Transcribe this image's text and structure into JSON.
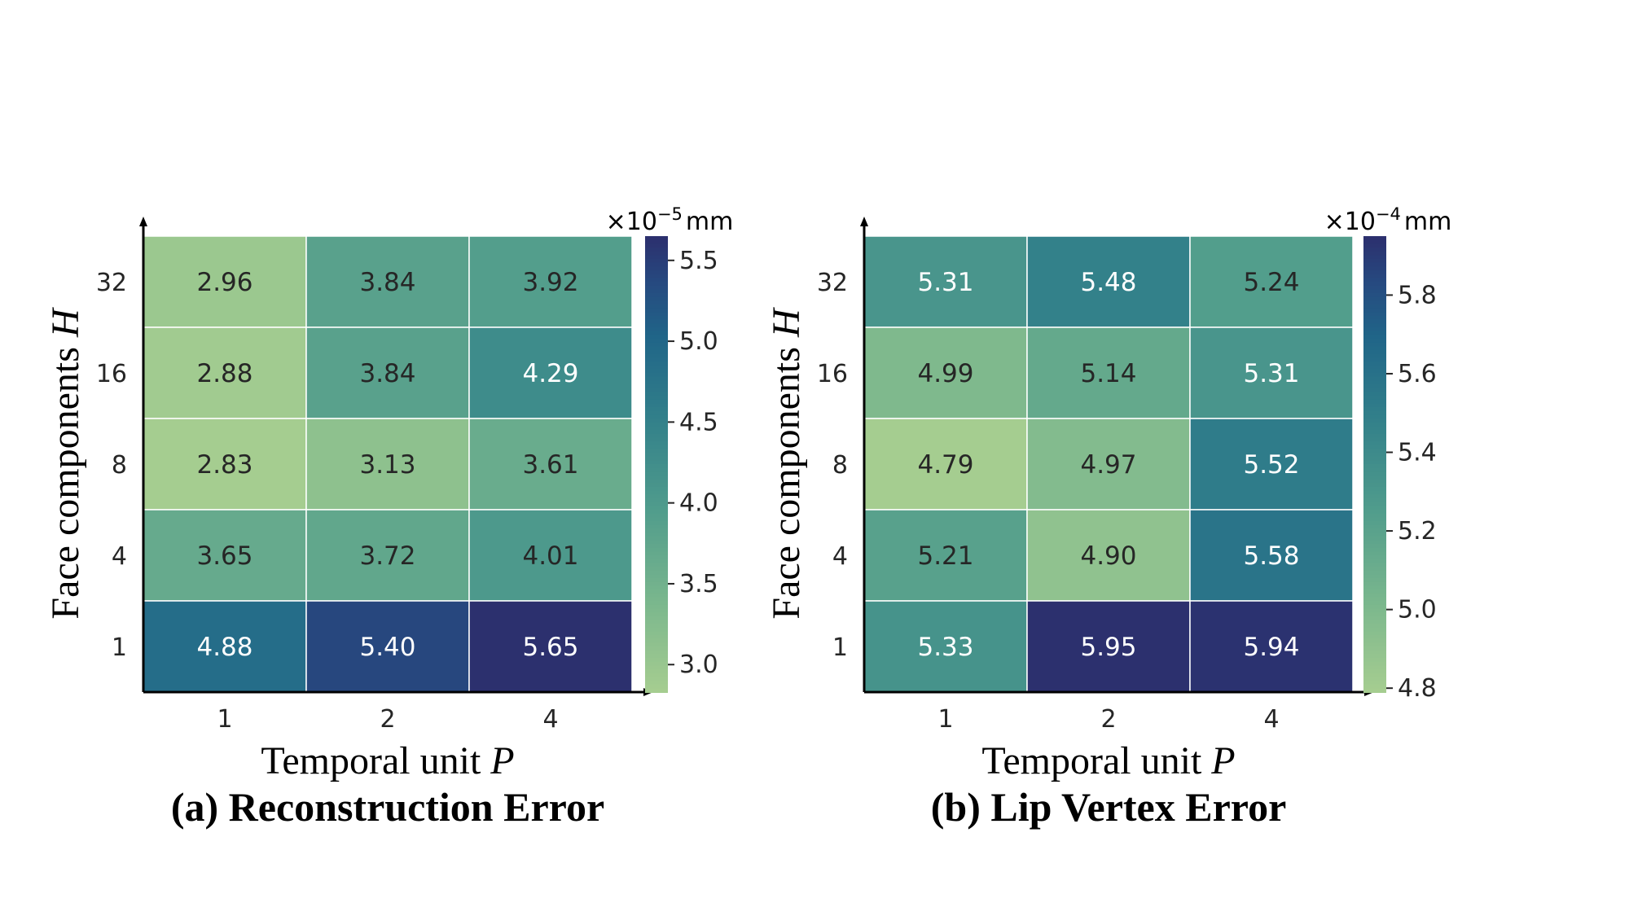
{
  "figure": {
    "panels": [
      {
        "caption": "(a) Reconstruction Error",
        "colorbar_unit_prefix": "×10",
        "colorbar_unit_exponent": "−5",
        "colorbar_unit_suffix": "mm"
      },
      {
        "caption": "(b) Lip Vertex Error",
        "colorbar_unit_prefix": "×10",
        "colorbar_unit_exponent": "−4",
        "colorbar_unit_suffix": "mm"
      }
    ]
  },
  "chart_data": [
    {
      "type": "heatmap",
      "title": "(a) Reconstruction Error",
      "xlabel": "Temporal unit P",
      "ylabel": "Face components H",
      "x_categories": [
        "1",
        "2",
        "4"
      ],
      "y_categories": [
        "32",
        "16",
        "8",
        "4",
        "1"
      ],
      "values": [
        [
          2.96,
          3.84,
          3.92
        ],
        [
          2.88,
          3.84,
          4.29
        ],
        [
          2.83,
          3.13,
          3.61
        ],
        [
          3.65,
          3.72,
          4.01
        ],
        [
          4.88,
          5.4,
          5.65
        ]
      ],
      "colorbar": {
        "range": [
          2.83,
          5.65
        ],
        "ticks": [
          3.0,
          3.5,
          4.0,
          4.5,
          5.0,
          5.5
        ],
        "tick_labels": [
          "3.0",
          "3.5",
          "4.0",
          "4.5",
          "5.0",
          "5.5"
        ],
        "unit": "×10^-5 mm"
      },
      "colormap": "crest"
    },
    {
      "type": "heatmap",
      "title": "(b) Lip Vertex Error",
      "xlabel": "Temporal unit P",
      "ylabel": "Face components H",
      "x_categories": [
        "1",
        "2",
        "4"
      ],
      "y_categories": [
        "32",
        "16",
        "8",
        "4",
        "1"
      ],
      "values": [
        [
          5.31,
          5.48,
          5.24
        ],
        [
          4.99,
          5.14,
          5.31
        ],
        [
          4.79,
          4.97,
          5.52
        ],
        [
          5.21,
          4.9,
          5.58
        ],
        [
          5.33,
          5.95,
          5.94
        ]
      ],
      "colorbar": {
        "range": [
          4.79,
          5.95
        ],
        "ticks": [
          4.8,
          5.0,
          5.2,
          5.4,
          5.6,
          5.8
        ],
        "tick_labels": [
          "4.8",
          "5.0",
          "5.2",
          "5.4",
          "5.6",
          "5.8"
        ],
        "unit": "×10^-4 mm"
      },
      "colormap": "crest"
    }
  ]
}
